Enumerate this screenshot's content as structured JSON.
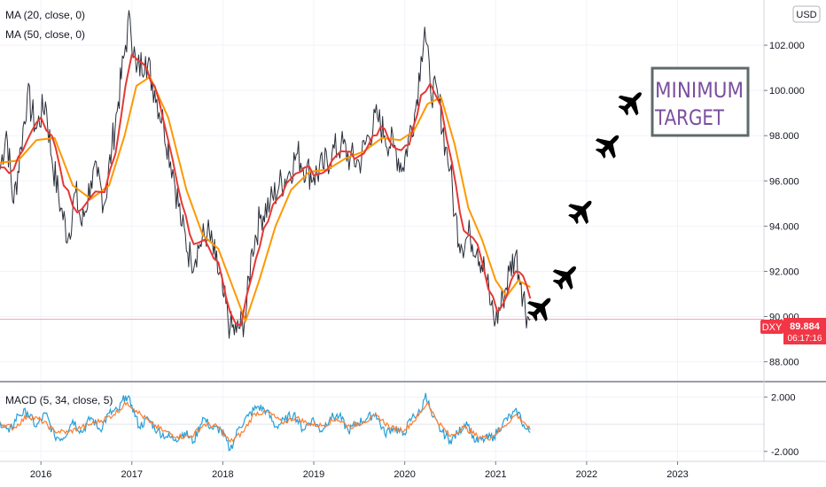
{
  "chart_data": {
    "type": "line",
    "symbol": "DXY",
    "currency_badge": "USD",
    "last_price": "89.884",
    "countdown": "06:17:16",
    "indicators": {
      "ma20_label": "MA (20, close, 0)",
      "ma50_label": "MA (50, close, 0)",
      "macd_label": "MACD (5, 34, close, 5)"
    },
    "colors": {
      "price": "#2a2e39",
      "ma20": "#e53935",
      "ma50": "#ff9800",
      "macd": "#26a0d8",
      "signal": "#ff7b2e",
      "last_price": "#f23645",
      "target_text": "#7a4fa0",
      "target_border": "#5f6b6b",
      "plane": "#000000"
    },
    "price_axis": {
      "ylim": [
        87.2,
        104.0
      ],
      "ticks": [
        "88.000",
        "90.000",
        "92.000",
        "94.000",
        "96.000",
        "98.000",
        "100.000",
        "102.000"
      ],
      "tick_values": [
        88,
        90,
        92,
        94,
        96,
        98,
        100,
        102
      ]
    },
    "macd_axis": {
      "ylim": [
        -2.6,
        3.0
      ],
      "ticks": [
        "2.000",
        "-2.000"
      ],
      "tick_values": [
        2,
        -2
      ]
    },
    "x_axis": {
      "ticks": [
        "2016",
        "2017",
        "2018",
        "2019",
        "2020",
        "2021",
        "2022",
        "2023"
      ],
      "tick_values": [
        2016,
        2017,
        2018,
        2019,
        2020,
        2021,
        2022,
        2023
      ],
      "xlim": [
        2015.55,
        2023.95
      ]
    },
    "price_path": [
      [
        2015.55,
        96.5
      ],
      [
        2015.62,
        98.2
      ],
      [
        2015.7,
        95.0
      ],
      [
        2015.78,
        97.5
      ],
      [
        2015.85,
        99.8
      ],
      [
        2015.95,
        98.3
      ],
      [
        2016.05,
        99.5
      ],
      [
        2016.12,
        97.0
      ],
      [
        2016.22,
        94.8
      ],
      [
        2016.3,
        93.5
      ],
      [
        2016.38,
        95.5
      ],
      [
        2016.45,
        94.0
      ],
      [
        2016.55,
        96.0
      ],
      [
        2016.62,
        96.2
      ],
      [
        2016.7,
        95.0
      ],
      [
        2016.78,
        97.5
      ],
      [
        2016.85,
        99.5
      ],
      [
        2016.93,
        102.0
      ],
      [
        2016.98,
        103.2
      ],
      [
        2017.05,
        100.8
      ],
      [
        2017.15,
        101.5
      ],
      [
        2017.25,
        100.0
      ],
      [
        2017.35,
        98.5
      ],
      [
        2017.45,
        96.5
      ],
      [
        2017.55,
        94.0
      ],
      [
        2017.65,
        92.5
      ],
      [
        2017.75,
        93.2
      ],
      [
        2017.83,
        93.8
      ],
      [
        2017.92,
        92.5
      ],
      [
        2018.0,
        91.0
      ],
      [
        2018.08,
        89.5
      ],
      [
        2018.15,
        89.3
      ],
      [
        2018.25,
        90.0
      ],
      [
        2018.32,
        93.0
      ],
      [
        2018.42,
        94.5
      ],
      [
        2018.52,
        95.0
      ],
      [
        2018.62,
        95.8
      ],
      [
        2018.72,
        96.3
      ],
      [
        2018.82,
        97.2
      ],
      [
        2018.92,
        96.5
      ],
      [
        2019.0,
        96.2
      ],
      [
        2019.1,
        96.6
      ],
      [
        2019.2,
        97.2
      ],
      [
        2019.3,
        97.6
      ],
      [
        2019.4,
        97.0
      ],
      [
        2019.5,
        96.8
      ],
      [
        2019.6,
        98.0
      ],
      [
        2019.7,
        98.8
      ],
      [
        2019.78,
        98.0
      ],
      [
        2019.88,
        97.5
      ],
      [
        2019.98,
        96.6
      ],
      [
        2020.05,
        98.0
      ],
      [
        2020.12,
        99.2
      ],
      [
        2020.18,
        101.5
      ],
      [
        2020.22,
        102.8
      ],
      [
        2020.28,
        100.2
      ],
      [
        2020.38,
        99.5
      ],
      [
        2020.45,
        97.5
      ],
      [
        2020.5,
        96.5
      ],
      [
        2020.55,
        94.5
      ],
      [
        2020.62,
        93.2
      ],
      [
        2020.72,
        93.6
      ],
      [
        2020.8,
        93.0
      ],
      [
        2020.88,
        92.0
      ],
      [
        2020.95,
        90.5
      ],
      [
        2021.0,
        89.8
      ],
      [
        2021.08,
        90.8
      ],
      [
        2021.15,
        92.0
      ],
      [
        2021.22,
        92.8
      ],
      [
        2021.28,
        91.5
      ],
      [
        2021.35,
        90.0
      ],
      [
        2021.38,
        89.9
      ]
    ],
    "ma20_path": [
      [
        2015.55,
        96.6
      ],
      [
        2015.7,
        96.5
      ],
      [
        2015.85,
        97.8
      ],
      [
        2016.0,
        98.8
      ],
      [
        2016.12,
        98.0
      ],
      [
        2016.25,
        95.8
      ],
      [
        2016.4,
        94.6
      ],
      [
        2016.55,
        95.3
      ],
      [
        2016.7,
        95.5
      ],
      [
        2016.82,
        97.2
      ],
      [
        2016.93,
        100.2
      ],
      [
        2017.0,
        101.6
      ],
      [
        2017.12,
        101.2
      ],
      [
        2017.25,
        100.2
      ],
      [
        2017.4,
        97.8
      ],
      [
        2017.55,
        95.0
      ],
      [
        2017.68,
        93.2
      ],
      [
        2017.8,
        93.4
      ],
      [
        2017.95,
        92.4
      ],
      [
        2018.08,
        90.2
      ],
      [
        2018.2,
        89.6
      ],
      [
        2018.32,
        91.8
      ],
      [
        2018.45,
        93.9
      ],
      [
        2018.6,
        95.2
      ],
      [
        2018.75,
        96.1
      ],
      [
        2018.9,
        96.6
      ],
      [
        2019.05,
        96.3
      ],
      [
        2019.2,
        96.9
      ],
      [
        2019.35,
        97.3
      ],
      [
        2019.5,
        97.1
      ],
      [
        2019.65,
        98.0
      ],
      [
        2019.78,
        98.3
      ],
      [
        2019.92,
        97.4
      ],
      [
        2020.05,
        97.6
      ],
      [
        2020.18,
        99.8
      ],
      [
        2020.28,
        100.3
      ],
      [
        2020.4,
        99.3
      ],
      [
        2020.52,
        96.8
      ],
      [
        2020.65,
        93.8
      ],
      [
        2020.8,
        93.2
      ],
      [
        2020.92,
        91.2
      ],
      [
        2021.02,
        90.2
      ],
      [
        2021.12,
        90.9
      ],
      [
        2021.22,
        92.0
      ],
      [
        2021.3,
        91.8
      ],
      [
        2021.38,
        90.8
      ]
    ],
    "ma50_path": [
      [
        2015.55,
        96.8
      ],
      [
        2015.75,
        96.9
      ],
      [
        2015.95,
        97.8
      ],
      [
        2016.15,
        97.9
      ],
      [
        2016.35,
        95.8
      ],
      [
        2016.55,
        95.2
      ],
      [
        2016.75,
        95.8
      ],
      [
        2016.92,
        98.0
      ],
      [
        2017.05,
        100.2
      ],
      [
        2017.2,
        100.6
      ],
      [
        2017.4,
        98.8
      ],
      [
        2017.6,
        95.6
      ],
      [
        2017.78,
        93.6
      ],
      [
        2017.95,
        93.0
      ],
      [
        2018.1,
        91.4
      ],
      [
        2018.25,
        89.8
      ],
      [
        2018.4,
        91.6
      ],
      [
        2018.58,
        94.0
      ],
      [
        2018.75,
        95.6
      ],
      [
        2018.95,
        96.4
      ],
      [
        2019.15,
        96.5
      ],
      [
        2019.35,
        97.0
      ],
      [
        2019.55,
        97.3
      ],
      [
        2019.75,
        97.9
      ],
      [
        2019.95,
        97.8
      ],
      [
        2020.1,
        98.2
      ],
      [
        2020.25,
        99.4
      ],
      [
        2020.4,
        99.7
      ],
      [
        2020.55,
        97.6
      ],
      [
        2020.7,
        94.8
      ],
      [
        2020.85,
        93.4
      ],
      [
        2021.0,
        91.6
      ],
      [
        2021.12,
        90.9
      ],
      [
        2021.25,
        91.6
      ],
      [
        2021.38,
        91.3
      ]
    ],
    "macd_path": [
      [
        2015.55,
        0.2
      ],
      [
        2015.65,
        -0.6
      ],
      [
        2015.75,
        0.7
      ],
      [
        2015.85,
        0.9
      ],
      [
        2015.95,
        -0.2
      ],
      [
        2016.05,
        0.8
      ],
      [
        2016.15,
        -0.9
      ],
      [
        2016.25,
        -1.0
      ],
      [
        2016.35,
        0.3
      ],
      [
        2016.45,
        -0.6
      ],
      [
        2016.55,
        0.5
      ],
      [
        2016.65,
        -0.4
      ],
      [
        2016.75,
        0.8
      ],
      [
        2016.85,
        1.0
      ],
      [
        2016.93,
        2.1
      ],
      [
        2017.0,
        1.4
      ],
      [
        2017.08,
        -0.2
      ],
      [
        2017.18,
        0.4
      ],
      [
        2017.28,
        -0.5
      ],
      [
        2017.38,
        -0.9
      ],
      [
        2017.48,
        -1.1
      ],
      [
        2017.58,
        -0.6
      ],
      [
        2017.68,
        -1.3
      ],
      [
        2017.78,
        0.5
      ],
      [
        2017.88,
        -0.3
      ],
      [
        2017.98,
        -0.4
      ],
      [
        2018.08,
        -1.9
      ],
      [
        2018.18,
        -0.2
      ],
      [
        2018.28,
        0.6
      ],
      [
        2018.38,
        1.3
      ],
      [
        2018.48,
        1.0
      ],
      [
        2018.58,
        -0.2
      ],
      [
        2018.68,
        0.3
      ],
      [
        2018.78,
        0.8
      ],
      [
        2018.88,
        -0.4
      ],
      [
        2018.98,
        0.4
      ],
      [
        2019.08,
        -0.5
      ],
      [
        2019.18,
        0.5
      ],
      [
        2019.28,
        0.6
      ],
      [
        2019.38,
        -0.5
      ],
      [
        2019.48,
        0.1
      ],
      [
        2019.58,
        0.4
      ],
      [
        2019.68,
        0.8
      ],
      [
        2019.78,
        -0.7
      ],
      [
        2019.88,
        -0.2
      ],
      [
        2019.98,
        -0.8
      ],
      [
        2020.08,
        0.5
      ],
      [
        2020.18,
        0.9
      ],
      [
        2020.23,
        2.3
      ],
      [
        2020.3,
        0.6
      ],
      [
        2020.4,
        -0.5
      ],
      [
        2020.5,
        -1.2
      ],
      [
        2020.58,
        -0.7
      ],
      [
        2020.68,
        0.2
      ],
      [
        2020.78,
        -1.3
      ],
      [
        2020.88,
        -1.1
      ],
      [
        2020.98,
        -0.9
      ],
      [
        2021.08,
        0.1
      ],
      [
        2021.18,
        0.7
      ],
      [
        2021.25,
        0.9
      ],
      [
        2021.32,
        -0.3
      ],
      [
        2021.38,
        -0.6
      ]
    ],
    "signal_path": [
      [
        2015.55,
        0.1
      ],
      [
        2015.7,
        -0.3
      ],
      [
        2015.85,
        0.6
      ],
      [
        2016.0,
        0.3
      ],
      [
        2016.15,
        -0.5
      ],
      [
        2016.3,
        -0.6
      ],
      [
        2016.45,
        -0.2
      ],
      [
        2016.6,
        0.1
      ],
      [
        2016.8,
        0.7
      ],
      [
        2016.95,
        1.6
      ],
      [
        2017.05,
        1.0
      ],
      [
        2017.2,
        0.1
      ],
      [
        2017.35,
        -0.5
      ],
      [
        2017.5,
        -0.9
      ],
      [
        2017.65,
        -0.9
      ],
      [
        2017.8,
        0.0
      ],
      [
        2017.95,
        -0.2
      ],
      [
        2018.08,
        -1.3
      ],
      [
        2018.22,
        -0.6
      ],
      [
        2018.35,
        0.8
      ],
      [
        2018.5,
        0.9
      ],
      [
        2018.65,
        0.1
      ],
      [
        2018.8,
        0.5
      ],
      [
        2018.95,
        0.0
      ],
      [
        2019.1,
        -0.1
      ],
      [
        2019.25,
        0.4
      ],
      [
        2019.4,
        -0.2
      ],
      [
        2019.55,
        0.2
      ],
      [
        2019.7,
        0.6
      ],
      [
        2019.85,
        -0.3
      ],
      [
        2020.0,
        -0.4
      ],
      [
        2020.15,
        0.6
      ],
      [
        2020.25,
        1.6
      ],
      [
        2020.35,
        0.3
      ],
      [
        2020.5,
        -0.9
      ],
      [
        2020.65,
        -0.2
      ],
      [
        2020.8,
        -0.9
      ],
      [
        2020.95,
        -1.0
      ],
      [
        2021.1,
        -0.1
      ],
      [
        2021.22,
        0.7
      ],
      [
        2021.32,
        0.1
      ],
      [
        2021.38,
        -0.4
      ]
    ],
    "annotations": {
      "target_line1": "MINIMUM",
      "target_line2": "TARGET",
      "planes": [
        [
          2021.5,
          90.4
        ],
        [
          2021.78,
          91.8
        ],
        [
          2021.95,
          94.7
        ],
        [
          2022.25,
          97.6
        ],
        [
          2022.5,
          99.5
        ]
      ]
    }
  }
}
